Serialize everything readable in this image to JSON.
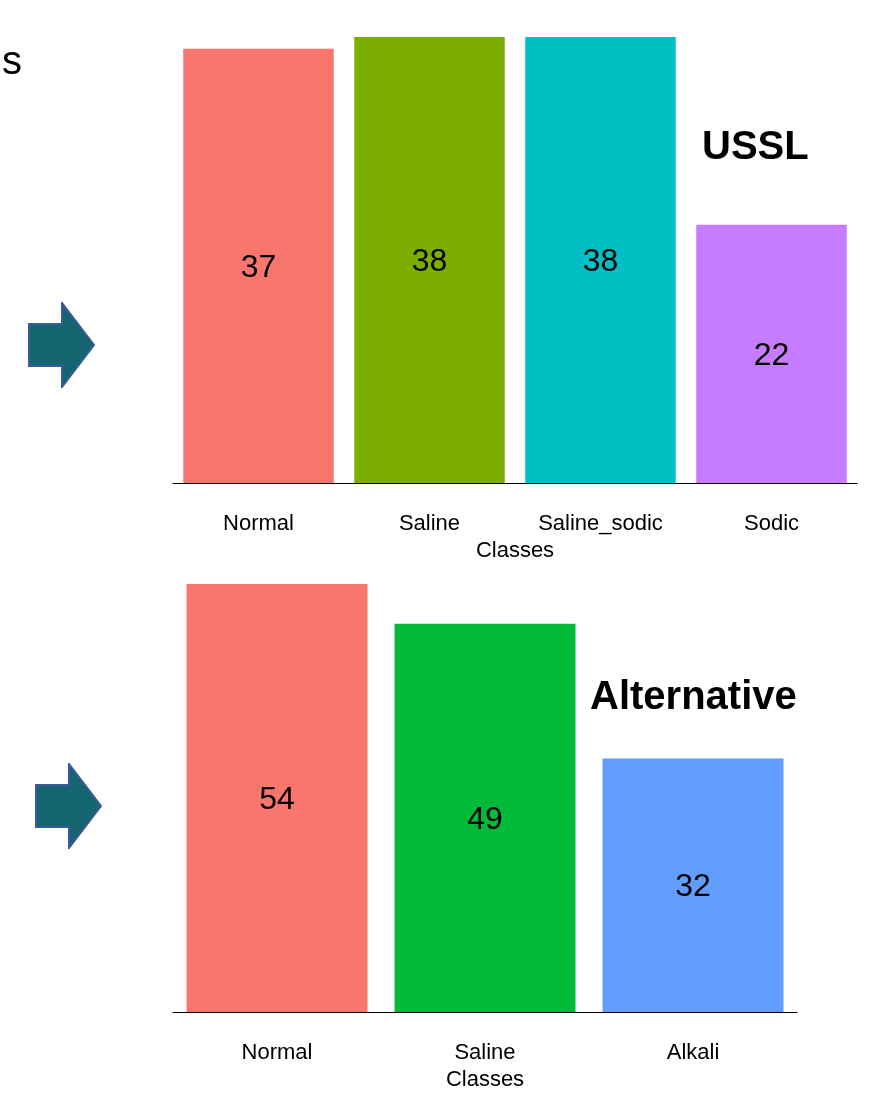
{
  "chart_data": [
    {
      "type": "bar",
      "title": "USSL",
      "xlabel": "Classes",
      "annotations": [
        "s"
      ],
      "categories": [
        "Normal",
        "Saline",
        "Saline_sodic",
        "Sodic"
      ],
      "values": [
        37,
        38,
        38,
        22
      ],
      "colors": [
        "#f8766d",
        "#7cae00",
        "#00bfc4",
        "#c77cff"
      ],
      "data_labels": true
    },
    {
      "type": "bar",
      "title": "Alternative",
      "xlabel": "Classes",
      "categories": [
        "Normal",
        "Saline",
        "Alkali"
      ],
      "values": [
        54,
        49,
        32
      ],
      "colors": [
        "#f8766d",
        "#00ba38",
        "#619cff"
      ],
      "data_labels": true
    }
  ]
}
